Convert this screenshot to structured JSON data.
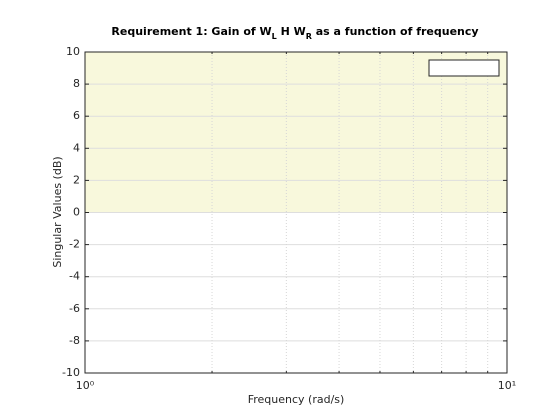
{
  "chart_data": {
    "type": "line",
    "title_parts": [
      "Requirement 1: Gain of W",
      "L",
      " H W",
      "R",
      " as a function of frequency"
    ],
    "x_label": "Frequency (rad/s)",
    "y_label": "Singular Values (dB)",
    "xscale": "log",
    "xlim": [
      1,
      10
    ],
    "xticks": [
      {
        "value": 1,
        "label": "10⁰"
      },
      {
        "value": 10,
        "label": "10¹"
      }
    ],
    "xminorticks": [
      2,
      3,
      4,
      5,
      6,
      7,
      8,
      9
    ],
    "ylim": [
      -10,
      10
    ],
    "yticks": [
      -10,
      -8,
      -6,
      -4,
      -2,
      0,
      2,
      4,
      6,
      8,
      10
    ],
    "grid": true,
    "shaded_region": {
      "ylim": [
        0,
        10
      ],
      "color": "#f8f8dc"
    },
    "series": []
  }
}
